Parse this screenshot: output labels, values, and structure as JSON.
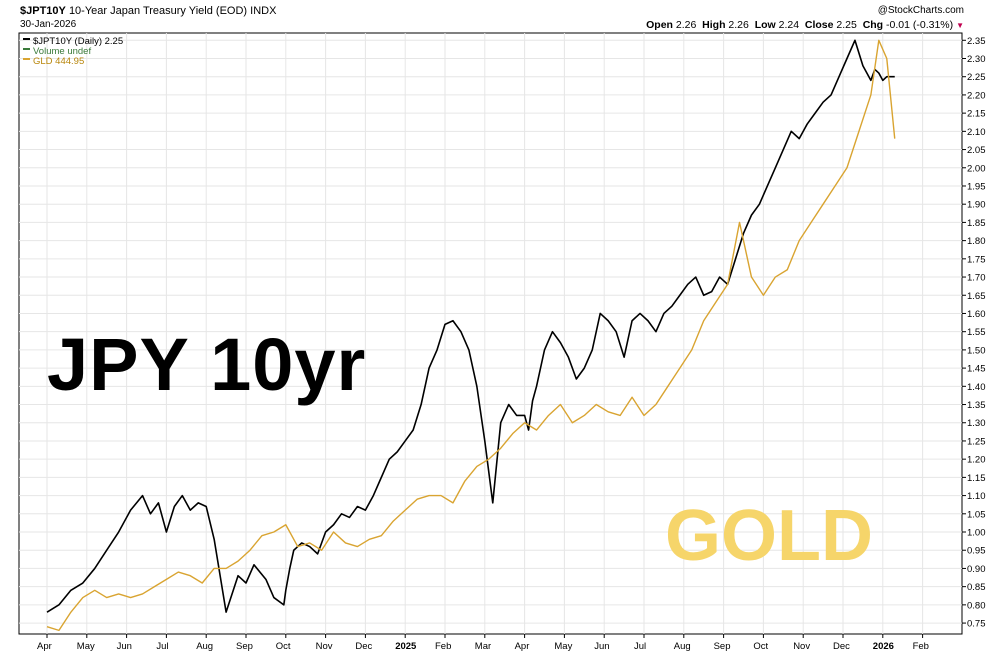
{
  "header": {
    "symbol": "$JPT10Y",
    "name": "10-Year Japan Treasury Yield (EOD)",
    "exchange": "INDX",
    "date": "30-Jan-2026",
    "brand": "@StockCharts.com",
    "open_label": "Open",
    "open": "2.26",
    "high_label": "High",
    "high": "2.26",
    "low_label": "Low",
    "low": "2.24",
    "close_label": "Close",
    "close": "2.25",
    "chg_label": "Chg",
    "chg": "-0.01 (-0.31%)"
  },
  "legend": {
    "items": [
      {
        "label": "$JPT10Y (Daily) 2.25",
        "color": "#000000"
      },
      {
        "label": "Volume undef",
        "color": "#3a7a3a"
      },
      {
        "label": "GLD 444.95",
        "color": "#d9a431"
      }
    ]
  },
  "overlay": {
    "jpy_label": "JPY 10yr",
    "gold_label": "GOLD"
  },
  "chart_data": {
    "type": "line",
    "title": "10-Year Japan Treasury Yield (EOD)",
    "x_ticks": [
      "Apr",
      "May",
      "Jun",
      "Jul",
      "Aug",
      "Sep",
      "Oct",
      "Nov",
      "Dec",
      "2025",
      "Feb",
      "Mar",
      "Apr",
      "May",
      "Jun",
      "Jul",
      "Aug",
      "Sep",
      "Oct",
      "Nov",
      "Dec",
      "2026",
      "Feb"
    ],
    "x_bold": [
      "2025",
      "2026"
    ],
    "ylim": [
      0.72,
      2.37
    ],
    "y_ticks": [
      "0.75",
      "0.80",
      "0.85",
      "0.90",
      "0.95",
      "1.00",
      "1.05",
      "1.10",
      "1.15",
      "1.20",
      "1.25",
      "1.30",
      "1.35",
      "1.40",
      "1.45",
      "1.50",
      "1.55",
      "1.60",
      "1.65",
      "1.70",
      "1.75",
      "1.80",
      "1.85",
      "1.90",
      "1.95",
      "2.00",
      "2.05",
      "2.10",
      "2.15",
      "2.20",
      "2.25",
      "2.30",
      "2.35"
    ],
    "grid": true,
    "series": [
      {
        "name": "$JPT10Y (Daily)",
        "color": "#000000",
        "x": [
          0.0,
          0.3,
          0.6,
          0.9,
          1.2,
          1.5,
          1.8,
          2.1,
          2.4,
          2.6,
          2.8,
          3.0,
          3.2,
          3.4,
          3.6,
          3.8,
          4.0,
          4.2,
          4.5,
          4.8,
          5.0,
          5.2,
          5.5,
          5.7,
          5.95,
          6.0,
          6.1,
          6.2,
          6.4,
          6.6,
          6.8,
          7.0,
          7.2,
          7.4,
          7.6,
          7.8,
          8.0,
          8.2,
          8.4,
          8.6,
          8.8,
          9.0,
          9.2,
          9.4,
          9.6,
          9.8,
          10.0,
          10.2,
          10.4,
          10.6,
          10.8,
          11.0,
          11.2,
          11.4,
          11.6,
          11.8,
          12.0,
          12.1,
          12.2,
          12.3,
          12.5,
          12.7,
          12.9,
          13.1,
          13.3,
          13.5,
          13.7,
          13.9,
          14.1,
          14.3,
          14.5,
          14.7,
          14.9,
          15.1,
          15.3,
          15.5,
          15.7,
          15.9,
          16.1,
          16.3,
          16.5,
          16.7,
          16.9,
          17.1,
          17.3,
          17.5,
          17.7,
          17.9,
          18.1,
          18.3,
          18.5,
          18.7,
          18.9,
          19.1,
          19.3,
          19.5,
          19.7,
          19.9,
          20.1,
          20.3,
          20.5,
          20.7,
          20.8,
          20.9,
          21.0,
          21.1,
          21.2,
          21.3
        ],
        "y": [
          0.78,
          0.8,
          0.84,
          0.86,
          0.9,
          0.95,
          1.0,
          1.06,
          1.1,
          1.05,
          1.08,
          1.0,
          1.07,
          1.1,
          1.06,
          1.08,
          1.07,
          0.98,
          0.78,
          0.88,
          0.86,
          0.91,
          0.87,
          0.82,
          0.8,
          0.84,
          0.9,
          0.95,
          0.97,
          0.96,
          0.94,
          1.0,
          1.02,
          1.05,
          1.04,
          1.07,
          1.06,
          1.1,
          1.15,
          1.2,
          1.22,
          1.25,
          1.28,
          1.35,
          1.45,
          1.5,
          1.57,
          1.58,
          1.55,
          1.5,
          1.4,
          1.25,
          1.08,
          1.3,
          1.35,
          1.32,
          1.32,
          1.28,
          1.36,
          1.4,
          1.5,
          1.55,
          1.52,
          1.48,
          1.42,
          1.45,
          1.5,
          1.6,
          1.58,
          1.55,
          1.48,
          1.58,
          1.6,
          1.58,
          1.55,
          1.6,
          1.62,
          1.65,
          1.68,
          1.7,
          1.65,
          1.66,
          1.7,
          1.68,
          1.75,
          1.82,
          1.87,
          1.9,
          1.95,
          2.0,
          2.05,
          2.1,
          2.08,
          2.12,
          2.15,
          2.18,
          2.2,
          2.25,
          2.3,
          2.35,
          2.28,
          2.24,
          2.27,
          2.26,
          2.24,
          2.25,
          2.25,
          2.25
        ]
      },
      {
        "name": "GLD",
        "color": "#d9a431",
        "x": [
          0.0,
          0.3,
          0.6,
          0.9,
          1.2,
          1.5,
          1.8,
          2.1,
          2.4,
          2.7,
          3.0,
          3.3,
          3.6,
          3.9,
          4.2,
          4.5,
          4.8,
          5.1,
          5.4,
          5.7,
          6.0,
          6.3,
          6.6,
          6.9,
          7.2,
          7.5,
          7.8,
          8.1,
          8.4,
          8.7,
          9.0,
          9.3,
          9.6,
          9.9,
          10.2,
          10.5,
          10.8,
          11.1,
          11.4,
          11.7,
          12.0,
          12.3,
          12.6,
          12.9,
          13.2,
          13.5,
          13.8,
          14.1,
          14.4,
          14.7,
          15.0,
          15.3,
          15.6,
          15.9,
          16.2,
          16.5,
          16.8,
          17.1,
          17.4,
          17.7,
          18.0,
          18.3,
          18.6,
          18.9,
          19.2,
          19.5,
          19.8,
          20.1,
          20.4,
          20.7,
          20.9,
          21.1,
          21.3
        ],
        "y": [
          0.74,
          0.73,
          0.78,
          0.82,
          0.84,
          0.82,
          0.83,
          0.82,
          0.83,
          0.85,
          0.87,
          0.89,
          0.88,
          0.86,
          0.9,
          0.9,
          0.92,
          0.95,
          0.99,
          1.0,
          1.02,
          0.96,
          0.97,
          0.95,
          1.0,
          0.97,
          0.96,
          0.98,
          0.99,
          1.03,
          1.06,
          1.09,
          1.1,
          1.1,
          1.08,
          1.14,
          1.18,
          1.2,
          1.23,
          1.27,
          1.3,
          1.28,
          1.32,
          1.35,
          1.3,
          1.32,
          1.35,
          1.33,
          1.32,
          1.37,
          1.32,
          1.35,
          1.4,
          1.45,
          1.5,
          1.58,
          1.63,
          1.68,
          1.85,
          1.7,
          1.65,
          1.7,
          1.72,
          1.8,
          1.85,
          1.9,
          1.95,
          2.0,
          2.1,
          2.2,
          2.35,
          2.3,
          2.08
        ]
      }
    ]
  }
}
